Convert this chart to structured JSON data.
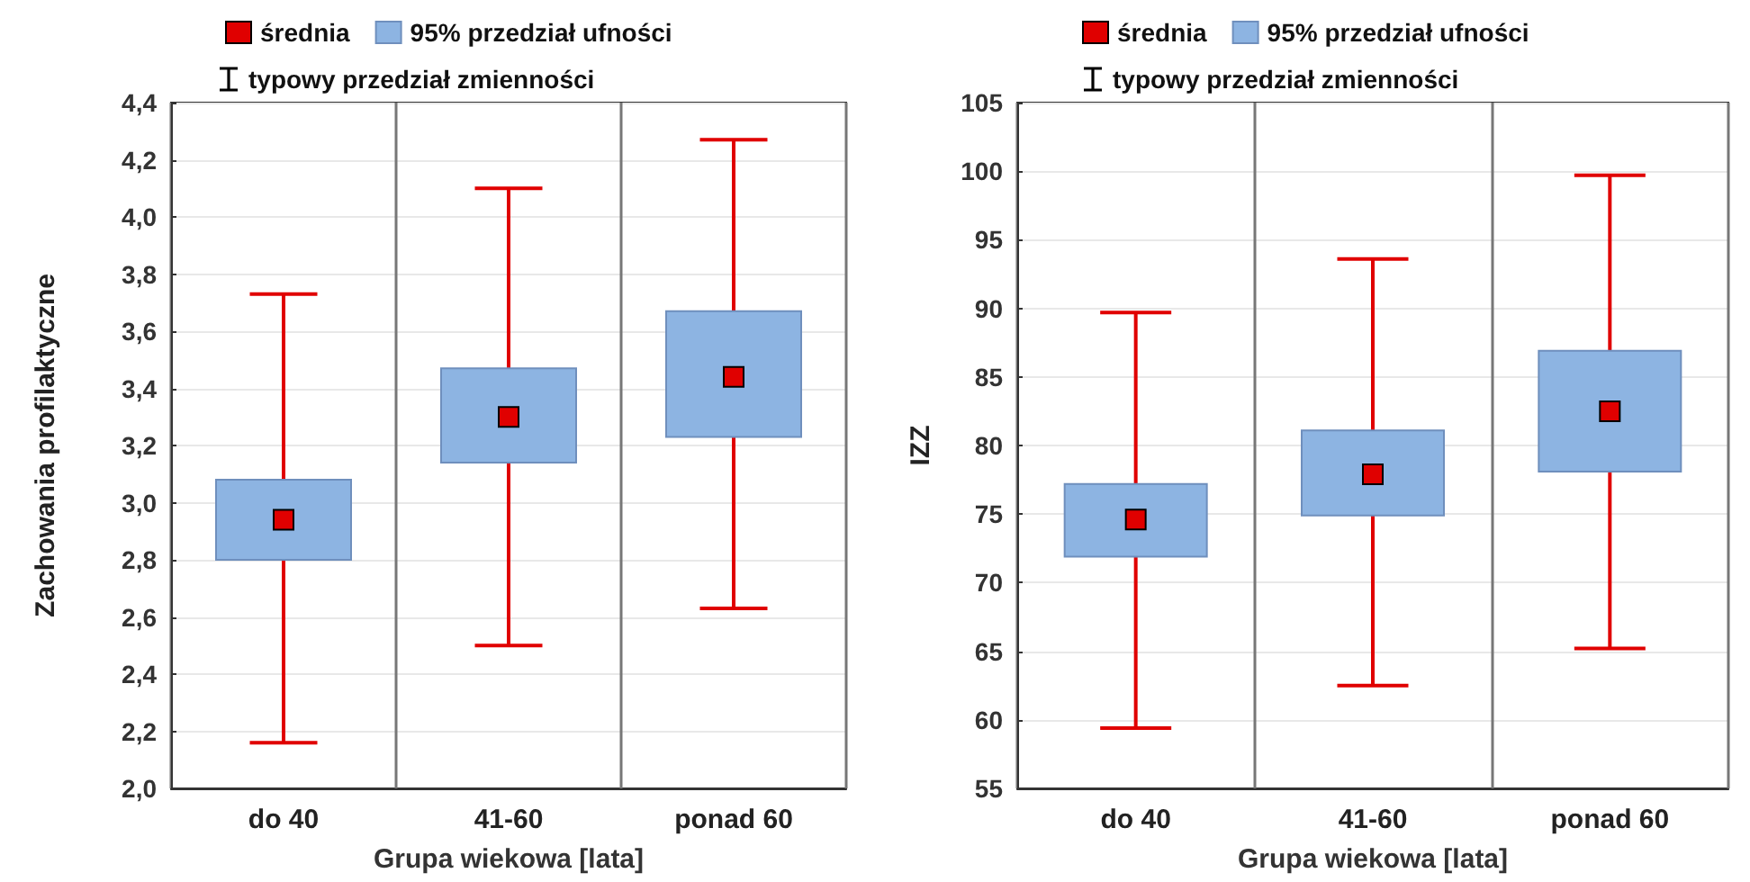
{
  "chart_data": [
    {
      "type": "bar",
      "categories": [
        "do 40",
        "41-60",
        "ponad 60"
      ],
      "xlabel": "Grupa wiekowa [lata]",
      "ylabel": "Zachowania profilaktyczne",
      "ylim": [
        2.0,
        4.4
      ],
      "yticks": [
        {
          "value": 2.0,
          "label": "2,0"
        },
        {
          "value": 2.2,
          "label": "2,2"
        },
        {
          "value": 2.4,
          "label": "2,4"
        },
        {
          "value": 2.6,
          "label": "2,6"
        },
        {
          "value": 2.8,
          "label": "2,8"
        },
        {
          "value": 3.0,
          "label": "3,0"
        },
        {
          "value": 3.2,
          "label": "3,2"
        },
        {
          "value": 3.4,
          "label": "3,4"
        },
        {
          "value": 3.6,
          "label": "3,6"
        },
        {
          "value": 3.8,
          "label": "3,8"
        },
        {
          "value": 4.0,
          "label": "4,0"
        },
        {
          "value": 4.2,
          "label": "4,2"
        },
        {
          "value": 4.4,
          "label": "4,4"
        }
      ],
      "grid": true,
      "legend": "top",
      "series": [
        {
          "type": "scatter",
          "name": "średnia",
          "color": "#e00000",
          "marker": "square",
          "x": [
            "do 40",
            "41-60",
            "ponad 60"
          ],
          "values": [
            2.94,
            3.3,
            3.44
          ],
          "errors": [
            [
              2.16,
              3.73
            ],
            [
              2.5,
              4.1
            ],
            [
              2.63,
              4.27
            ]
          ]
        },
        {
          "type": "bar",
          "name": "95% przedział ufności",
          "color": "#8db4e2",
          "base": [
            2.8,
            3.14,
            3.23
          ],
          "values": [
            0.28,
            0.33,
            0.44
          ]
        }
      ],
      "annotations": [
        "typowy przedział zmienności"
      ]
    },
    {
      "type": "bar",
      "categories": [
        "do 40",
        "41-60",
        "ponad 60"
      ],
      "xlabel": "Grupa wiekowa [lata]",
      "ylabel": "IZZ",
      "ylim": [
        55,
        105
      ],
      "yticks": [
        55,
        60,
        65,
        70,
        75,
        80,
        85,
        90,
        95,
        100,
        105
      ],
      "grid": true,
      "legend": "top",
      "series": [
        {
          "type": "scatter",
          "name": "średnia",
          "color": "#e00000",
          "marker": "square",
          "x": [
            "do 40",
            "41-60",
            "ponad 60"
          ],
          "values": [
            74.6,
            77.9,
            82.5
          ],
          "errors": [
            [
              59.4,
              89.7
            ],
            [
              62.5,
              93.6
            ],
            [
              65.2,
              99.7
            ]
          ]
        },
        {
          "type": "bar",
          "name": "95% przedział ufności",
          "color": "#8db4e2",
          "base": [
            71.9,
            74.9,
            78.1
          ],
          "values": [
            5.3,
            6.2,
            8.8
          ]
        }
      ],
      "annotations": [
        "typowy przedział zmienności"
      ]
    }
  ]
}
